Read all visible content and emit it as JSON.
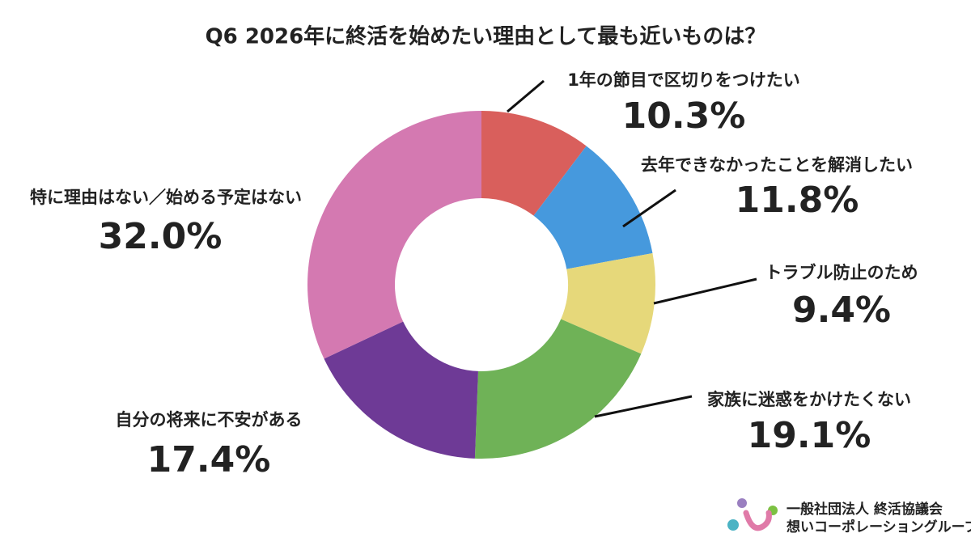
{
  "chart_data": {
    "type": "donut",
    "title": "Q6 2026年に終活を始めたい理由として最も近いものは？",
    "categories": [
      "1年の節目で区切りをつけたい",
      "去年できなかったことを解消したい",
      "トラブル防止のため",
      "家族に迷惑をかけたくない",
      "自分の将来に不安がある",
      "特に理由はない／始める予定はない"
    ],
    "values": [
      10.3,
      11.8,
      9.4,
      19.1,
      17.4,
      32.0
    ],
    "value_labels": [
      "10.3%",
      "11.8%",
      "9.4%",
      "19.1%",
      "17.4%",
      "32.0%"
    ],
    "colors": [
      "#d95f5c",
      "#4699dd",
      "#e6d87a",
      "#6fb257",
      "#6e3a96",
      "#d479b1"
    ]
  },
  "logo": {
    "line1": "一般社団法人 終活協議会",
    "line2": "想いコーポレーショングループ"
  }
}
